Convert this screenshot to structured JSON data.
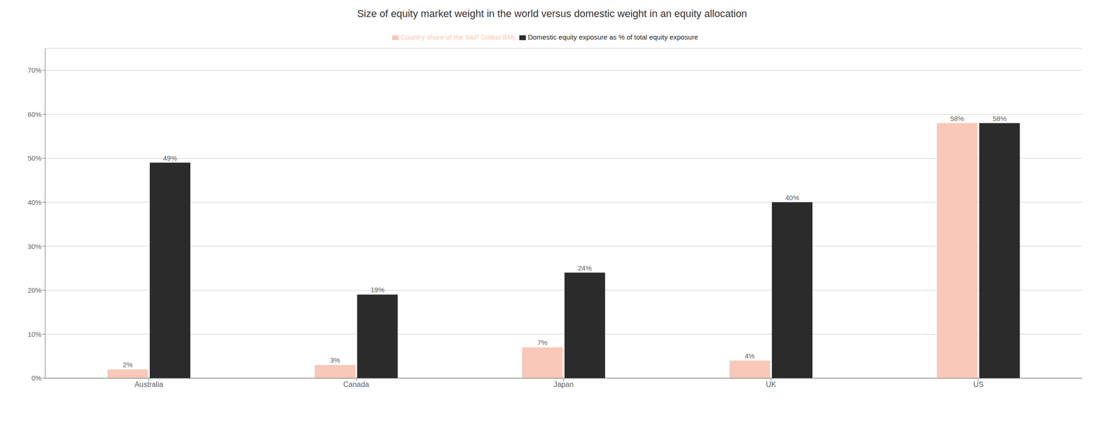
{
  "chart_data": {
    "type": "bar",
    "title": "Size of equity market weight in the world versus domestic weight in an equity allocation",
    "categories": [
      "Australia",
      "Canada",
      "Japan",
      "UK",
      "US"
    ],
    "series": [
      {
        "name": "Country share of the S&P Global BMI",
        "color": "#f9c8b8",
        "values": [
          2,
          3,
          7,
          4,
          58
        ],
        "value_labels": [
          "2%",
          "3%",
          "7%",
          "4%",
          "58%"
        ]
      },
      {
        "name": "Domestic equity exposure as % of total equity exposure",
        "color": "#2b2b2b",
        "values": [
          49,
          19,
          24,
          40,
          58
        ],
        "value_labels": [
          "49%",
          "19%",
          "24%",
          "40%",
          "58%"
        ]
      }
    ],
    "ylim": [
      0,
      75
    ],
    "yticks": [
      {
        "value": 0,
        "label": "0%"
      },
      {
        "value": 10,
        "label": "10%"
      },
      {
        "value": 20,
        "label": "20%"
      },
      {
        "value": 30,
        "label": "30%"
      },
      {
        "value": 40,
        "label": "40%"
      },
      {
        "value": 50,
        "label": "50%"
      },
      {
        "value": 60,
        "label": "60%"
      },
      {
        "value": 70,
        "label": "70%"
      }
    ],
    "grid": true,
    "legend": "top",
    "data_labels": true
  }
}
